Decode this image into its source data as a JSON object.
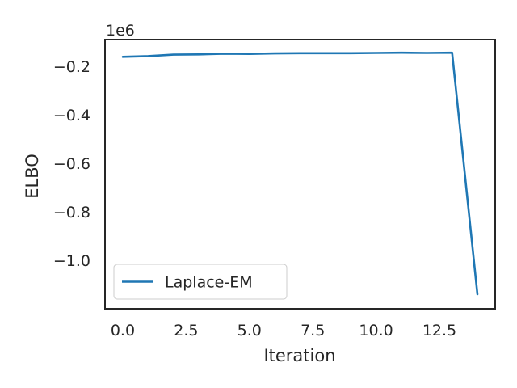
{
  "chart_data": {
    "type": "line",
    "xlabel": "Iteration",
    "ylabel": "ELBO",
    "y_offset_label": "1e6",
    "xlim": [
      -0.7,
      14.7
    ],
    "ylim": [
      -1.2,
      -0.09
    ],
    "x_ticks": [
      0.0,
      2.5,
      5.0,
      7.5,
      10.0,
      12.5
    ],
    "x_tick_labels": [
      "0.0",
      "2.5",
      "5.0",
      "7.5",
      "10.0",
      "12.5"
    ],
    "y_ticks": [
      -0.2,
      -0.4,
      -0.6,
      -0.8,
      -1.0
    ],
    "y_tick_labels": [
      "−0.2",
      "−0.4",
      "−0.6",
      "−0.8",
      "−1.0"
    ],
    "grid": false,
    "legend_position": "lower-left",
    "series": [
      {
        "name": "Laplace-EM",
        "color": "#1f77b4",
        "x": [
          0,
          1,
          2,
          3,
          4,
          5,
          6,
          7,
          8,
          9,
          10,
          11,
          12,
          13,
          14
        ],
        "y": [
          -0.161,
          -0.158,
          -0.152,
          -0.151,
          -0.148,
          -0.149,
          -0.147,
          -0.146,
          -0.146,
          -0.146,
          -0.145,
          -0.144,
          -0.145,
          -0.144,
          -1.14
        ]
      }
    ]
  }
}
